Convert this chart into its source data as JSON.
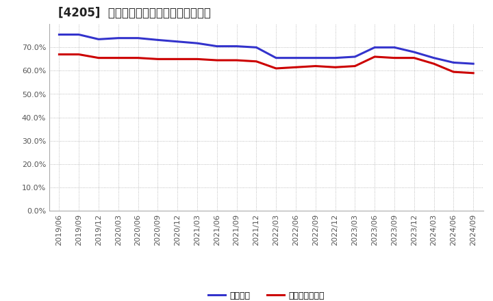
{
  "title": "[4205]  固定比率、固定長期適合率の推移",
  "x_labels": [
    "2019/06",
    "2019/09",
    "2019/12",
    "2020/03",
    "2020/06",
    "2020/09",
    "2020/12",
    "2021/03",
    "2021/06",
    "2021/09",
    "2021/12",
    "2022/03",
    "2022/06",
    "2022/09",
    "2022/12",
    "2023/03",
    "2023/06",
    "2023/09",
    "2023/12",
    "2024/03",
    "2024/06",
    "2024/09"
  ],
  "fixed_ratio": [
    75.5,
    75.5,
    73.5,
    74.0,
    74.0,
    73.2,
    72.5,
    71.8,
    70.5,
    70.5,
    70.0,
    65.5,
    65.5,
    65.5,
    65.5,
    66.0,
    70.0,
    70.0,
    68.0,
    65.5,
    63.5,
    63.0
  ],
  "fixed_long_ratio": [
    67.0,
    67.0,
    65.5,
    65.5,
    65.5,
    65.0,
    65.0,
    65.0,
    64.5,
    64.5,
    64.0,
    61.0,
    61.5,
    62.0,
    61.5,
    62.0,
    66.0,
    65.5,
    65.5,
    63.0,
    59.5,
    59.0
  ],
  "line_color_blue": "#3333CC",
  "line_color_red": "#CC0000",
  "background_color": "#FFFFFF",
  "grid_color": "#AAAAAA",
  "ylim": [
    0,
    80
  ],
  "ytick_max": 70,
  "ytick_step": 10,
  "legend_fixed": "固定比率",
  "legend_fixed_long": "固定長期適合率",
  "title_fontsize": 12,
  "tick_fontsize": 8,
  "legend_fontsize": 9,
  "line_width": 2.2
}
